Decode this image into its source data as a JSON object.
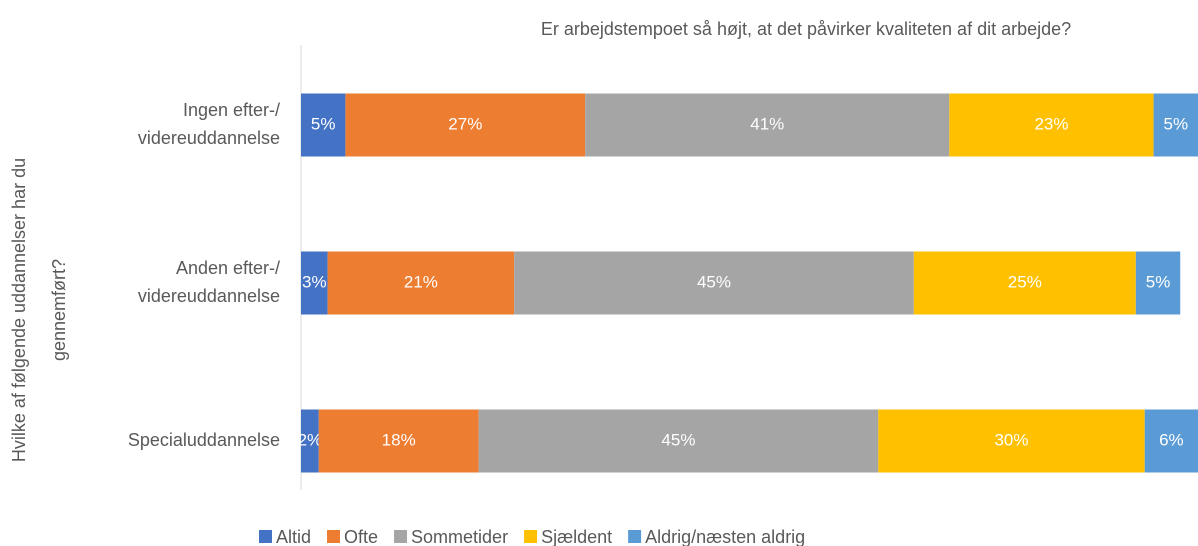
{
  "chart_data": {
    "type": "stacked_barh",
    "title": "Er arbejdstempoet så højt, at det påvirker kvaliteten af dit arbejde?",
    "y_label": [
      "Hvilke af følgende uddannelser har du",
      "gennemført?"
    ],
    "categories": [
      [
        "Ingen efter-/",
        "videreuddannelse"
      ],
      [
        "Anden efter-/",
        "videreuddannelse"
      ],
      [
        "Specialuddannelse"
      ]
    ],
    "xlim": [
      0,
      101
    ],
    "legend": "bottom",
    "series": [
      {
        "name": "Altid",
        "color": "#4472c4",
        "values": [
          5,
          3,
          2
        ],
        "value_labels": [
          "5%",
          "3%",
          "2%"
        ]
      },
      {
        "name": "Ofte",
        "color": "#ed7d31",
        "values": [
          27,
          21,
          18
        ],
        "value_labels": [
          "27%",
          "21%",
          "18%"
        ]
      },
      {
        "name": "Sommetider",
        "color": "#a5a5a5",
        "values": [
          41,
          45,
          45
        ],
        "value_labels": [
          "41%",
          "45%",
          "45%"
        ]
      },
      {
        "name": "Sjældent",
        "color": "#ffc000",
        "values": [
          23,
          25,
          30
        ],
        "value_labels": [
          "23%",
          "25%",
          "30%"
        ]
      },
      {
        "name": "Aldrig/næsten aldrig",
        "color": "#5b9bd5",
        "values": [
          5,
          5,
          6
        ],
        "value_labels": [
          "5%",
          "5%",
          "6%"
        ]
      }
    ]
  }
}
